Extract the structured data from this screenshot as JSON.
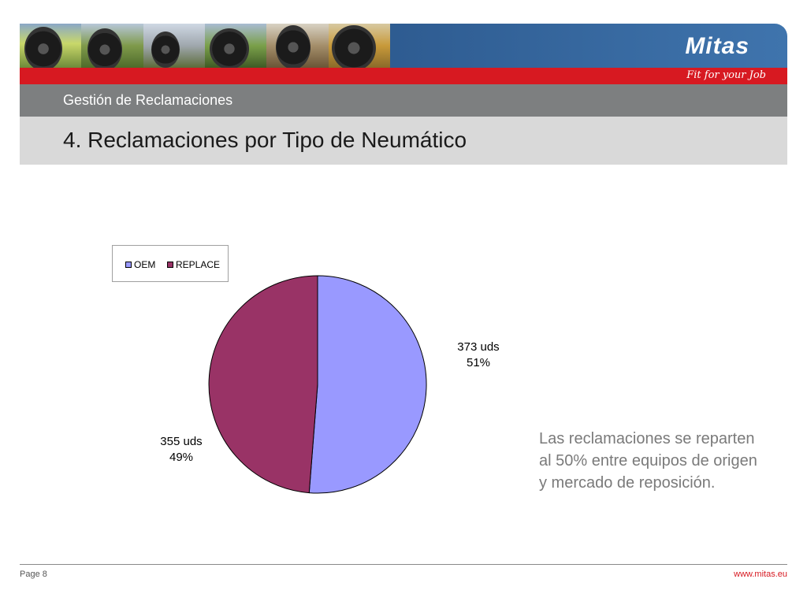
{
  "header": {
    "logo_text": "Mitas",
    "slogan": "Fit for your Job",
    "section_title": "Gestión de Reclamaciones",
    "page_title": "4. Reclamaciones por Tipo de Neumático",
    "colors": {
      "banner": "#2d5a8f",
      "red_strip": "#d71921",
      "gray_bar": "#7d7f80",
      "light_bar": "#d9d9d9"
    }
  },
  "chart_data": {
    "type": "pie",
    "title": "",
    "categories": [
      "OEM",
      "REPLACE"
    ],
    "values": [
      373,
      355
    ],
    "series": [
      {
        "name": "OEM",
        "value": 373,
        "percent": 51,
        "color": "#9999ff",
        "label_units": "373 uds",
        "label_percent": "51%"
      },
      {
        "name": "REPLACE",
        "value": 355,
        "percent": 49,
        "color": "#993366",
        "label_units": "355 uds",
        "label_percent": "49%"
      }
    ],
    "start_angle_deg": 0,
    "direction": "clockwise",
    "legend": {
      "placement": "top-left",
      "entries": [
        "OEM",
        "REPLACE"
      ]
    }
  },
  "summary": "Las reclamaciones se reparten al 50% entre equipos de origen y mercado de reposición.",
  "footer": {
    "page": "Page 8",
    "website": "www.mitas.eu"
  }
}
